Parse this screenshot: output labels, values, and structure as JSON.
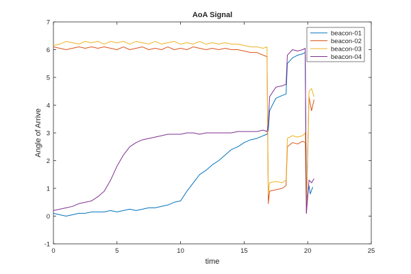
{
  "chart_data": {
    "type": "line",
    "title": "AoA Signal",
    "xlabel": "time",
    "ylabel": "Angle of Arrive",
    "xlim": [
      0,
      25
    ],
    "ylim": [
      -1,
      7
    ],
    "xticks": [
      "0",
      "5",
      "10",
      "15",
      "20",
      "25"
    ],
    "yticks": [
      "-1",
      "0",
      "1",
      "2",
      "3",
      "4",
      "5",
      "6",
      "7"
    ],
    "grid": false,
    "legend_position": "top-right",
    "series": [
      {
        "name": "beacon-01",
        "color": "#0072BD",
        "points": [
          [
            0,
            0.1
          ],
          [
            0.5,
            0.05
          ],
          [
            1,
            0.0
          ],
          [
            1.5,
            0.05
          ],
          [
            2,
            0.1
          ],
          [
            2.5,
            0.1
          ],
          [
            3,
            0.15
          ],
          [
            3.5,
            0.15
          ],
          [
            4,
            0.15
          ],
          [
            4.5,
            0.2
          ],
          [
            5,
            0.15
          ],
          [
            5.5,
            0.2
          ],
          [
            6,
            0.25
          ],
          [
            6.5,
            0.2
          ],
          [
            7,
            0.25
          ],
          [
            7.5,
            0.3
          ],
          [
            8,
            0.3
          ],
          [
            8.5,
            0.35
          ],
          [
            9,
            0.4
          ],
          [
            9.5,
            0.5
          ],
          [
            10,
            0.55
          ],
          [
            10.5,
            0.9
          ],
          [
            11,
            1.2
          ],
          [
            11.5,
            1.5
          ],
          [
            12,
            1.65
          ],
          [
            12.5,
            1.85
          ],
          [
            13,
            2.0
          ],
          [
            13.5,
            2.2
          ],
          [
            14,
            2.4
          ],
          [
            14.5,
            2.5
          ],
          [
            15,
            2.65
          ],
          [
            15.5,
            2.75
          ],
          [
            16,
            2.8
          ],
          [
            16.5,
            2.9
          ],
          [
            16.8,
            2.95
          ],
          [
            16.9,
            3.1
          ],
          [
            17,
            3.8
          ],
          [
            17.5,
            4.25
          ],
          [
            18,
            4.35
          ],
          [
            18.3,
            4.4
          ],
          [
            18.4,
            5.5
          ],
          [
            18.8,
            5.7
          ],
          [
            19.2,
            5.8
          ],
          [
            19.6,
            5.85
          ],
          [
            19.8,
            5.9
          ],
          [
            19.9,
            0.4
          ],
          [
            20.1,
            1.1
          ],
          [
            20.2,
            0.8
          ],
          [
            20.4,
            1.05
          ]
        ]
      },
      {
        "name": "beacon-02",
        "color": "#D95319",
        "points": [
          [
            0,
            6.1
          ],
          [
            0.5,
            6.05
          ],
          [
            1,
            6.0
          ],
          [
            1.5,
            6.05
          ],
          [
            2,
            6.1
          ],
          [
            2.5,
            6.05
          ],
          [
            3,
            6.1
          ],
          [
            3.5,
            6.05
          ],
          [
            4,
            6.1
          ],
          [
            4.5,
            6.05
          ],
          [
            5,
            6.0
          ],
          [
            5.5,
            6.1
          ],
          [
            6,
            6.0
          ],
          [
            6.5,
            6.05
          ],
          [
            7,
            6.1
          ],
          [
            7.5,
            6.0
          ],
          [
            8,
            6.05
          ],
          [
            8.5,
            6.0
          ],
          [
            9,
            6.1
          ],
          [
            9.5,
            6.0
          ],
          [
            10,
            6.05
          ],
          [
            10.5,
            6.0
          ],
          [
            11,
            6.1
          ],
          [
            11.5,
            6.05
          ],
          [
            12,
            6.0
          ],
          [
            12.5,
            6.05
          ],
          [
            13,
            6.0
          ],
          [
            13.5,
            6.05
          ],
          [
            14,
            6.0
          ],
          [
            14.5,
            6.0
          ],
          [
            15,
            5.95
          ],
          [
            15.5,
            5.9
          ],
          [
            16,
            5.9
          ],
          [
            16.5,
            5.8
          ],
          [
            16.8,
            5.75
          ],
          [
            16.9,
            0.45
          ],
          [
            17,
            0.9
          ],
          [
            17.5,
            0.95
          ],
          [
            18,
            1.0
          ],
          [
            18.3,
            1.1
          ],
          [
            18.4,
            2.5
          ],
          [
            18.8,
            2.65
          ],
          [
            19.2,
            2.6
          ],
          [
            19.6,
            2.7
          ],
          [
            19.8,
            2.65
          ],
          [
            19.9,
            0.1
          ],
          [
            20.1,
            4.3
          ],
          [
            20.3,
            3.8
          ],
          [
            20.5,
            4.2
          ]
        ]
      },
      {
        "name": "beacon-03",
        "color": "#EDB120",
        "points": [
          [
            0,
            6.15
          ],
          [
            0.5,
            6.2
          ],
          [
            1,
            6.3
          ],
          [
            1.5,
            6.25
          ],
          [
            2,
            6.2
          ],
          [
            2.5,
            6.3
          ],
          [
            3,
            6.25
          ],
          [
            3.5,
            6.3
          ],
          [
            4,
            6.2
          ],
          [
            4.5,
            6.3
          ],
          [
            5,
            6.25
          ],
          [
            5.5,
            6.3
          ],
          [
            6,
            6.2
          ],
          [
            6.5,
            6.3
          ],
          [
            7,
            6.25
          ],
          [
            7.5,
            6.2
          ],
          [
            8,
            6.3
          ],
          [
            8.5,
            6.2
          ],
          [
            9,
            6.25
          ],
          [
            9.5,
            6.3
          ],
          [
            10,
            6.2
          ],
          [
            10.5,
            6.25
          ],
          [
            11,
            6.2
          ],
          [
            11.5,
            6.3
          ],
          [
            12,
            6.2
          ],
          [
            12.5,
            6.25
          ],
          [
            13,
            6.2
          ],
          [
            13.5,
            6.25
          ],
          [
            14,
            6.2
          ],
          [
            14.5,
            6.2
          ],
          [
            15,
            6.15
          ],
          [
            15.5,
            6.1
          ],
          [
            16,
            6.1
          ],
          [
            16.5,
            6.05
          ],
          [
            16.8,
            6.1
          ],
          [
            16.9,
            0.8
          ],
          [
            17,
            1.2
          ],
          [
            17.5,
            1.25
          ],
          [
            18,
            1.2
          ],
          [
            18.3,
            1.3
          ],
          [
            18.4,
            2.8
          ],
          [
            18.8,
            2.9
          ],
          [
            19.2,
            2.85
          ],
          [
            19.6,
            2.9
          ],
          [
            19.8,
            3.0
          ],
          [
            19.9,
            0.3
          ],
          [
            20.1,
            4.5
          ],
          [
            20.3,
            4.6
          ],
          [
            20.5,
            4.3
          ]
        ]
      },
      {
        "name": "beacon-04",
        "color": "#7E2F8E",
        "points": [
          [
            0,
            0.2
          ],
          [
            0.5,
            0.25
          ],
          [
            1,
            0.3
          ],
          [
            1.5,
            0.35
          ],
          [
            2,
            0.45
          ],
          [
            2.5,
            0.5
          ],
          [
            3,
            0.55
          ],
          [
            3.5,
            0.7
          ],
          [
            4,
            0.9
          ],
          [
            4.5,
            1.3
          ],
          [
            5,
            1.8
          ],
          [
            5.5,
            2.2
          ],
          [
            6,
            2.5
          ],
          [
            6.5,
            2.65
          ],
          [
            7,
            2.75
          ],
          [
            7.5,
            2.8
          ],
          [
            8,
            2.85
          ],
          [
            8.5,
            2.9
          ],
          [
            9,
            2.95
          ],
          [
            9.5,
            2.95
          ],
          [
            10,
            2.95
          ],
          [
            10.5,
            3.0
          ],
          [
            11,
            3.0
          ],
          [
            11.5,
            2.95
          ],
          [
            12,
            3.0
          ],
          [
            12.5,
            3.0
          ],
          [
            13,
            3.0
          ],
          [
            13.5,
            3.0
          ],
          [
            14,
            3.0
          ],
          [
            14.5,
            3.05
          ],
          [
            15,
            3.05
          ],
          [
            15.5,
            3.05
          ],
          [
            16,
            3.05
          ],
          [
            16.5,
            3.1
          ],
          [
            16.8,
            3.05
          ],
          [
            16.9,
            3.3
          ],
          [
            17,
            4.3
          ],
          [
            17.5,
            4.65
          ],
          [
            18,
            4.7
          ],
          [
            18.3,
            4.75
          ],
          [
            18.4,
            5.8
          ],
          [
            18.8,
            6.0
          ],
          [
            19.2,
            5.95
          ],
          [
            19.6,
            6.0
          ],
          [
            19.8,
            6.05
          ],
          [
            19.9,
            0.1
          ],
          [
            20.1,
            1.3
          ],
          [
            20.3,
            1.2
          ],
          [
            20.5,
            1.35
          ]
        ]
      }
    ]
  }
}
